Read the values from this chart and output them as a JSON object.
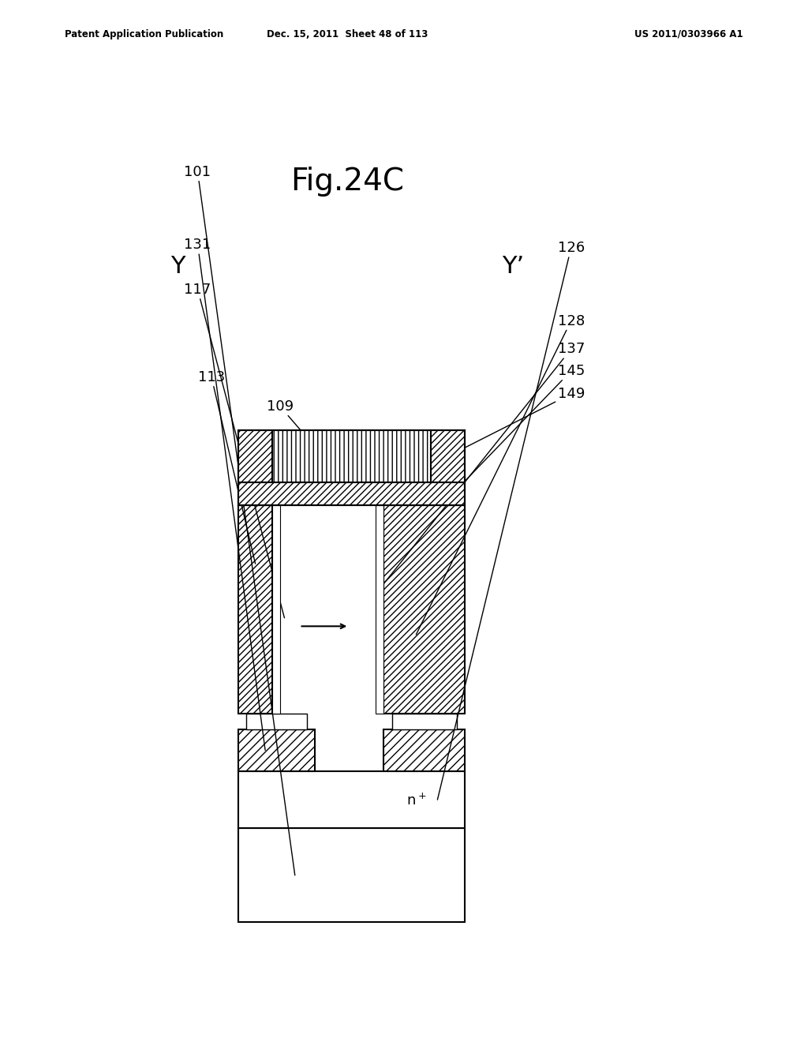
{
  "title": "Fig.24C",
  "header_left": "Patent Application Publication",
  "header_mid": "Dec. 15, 2011  Sheet 48 of 113",
  "header_right": "US 2011/0303966 A1",
  "label_Y": "Y",
  "label_Yprime": "Y’",
  "background_color": "#ffffff"
}
